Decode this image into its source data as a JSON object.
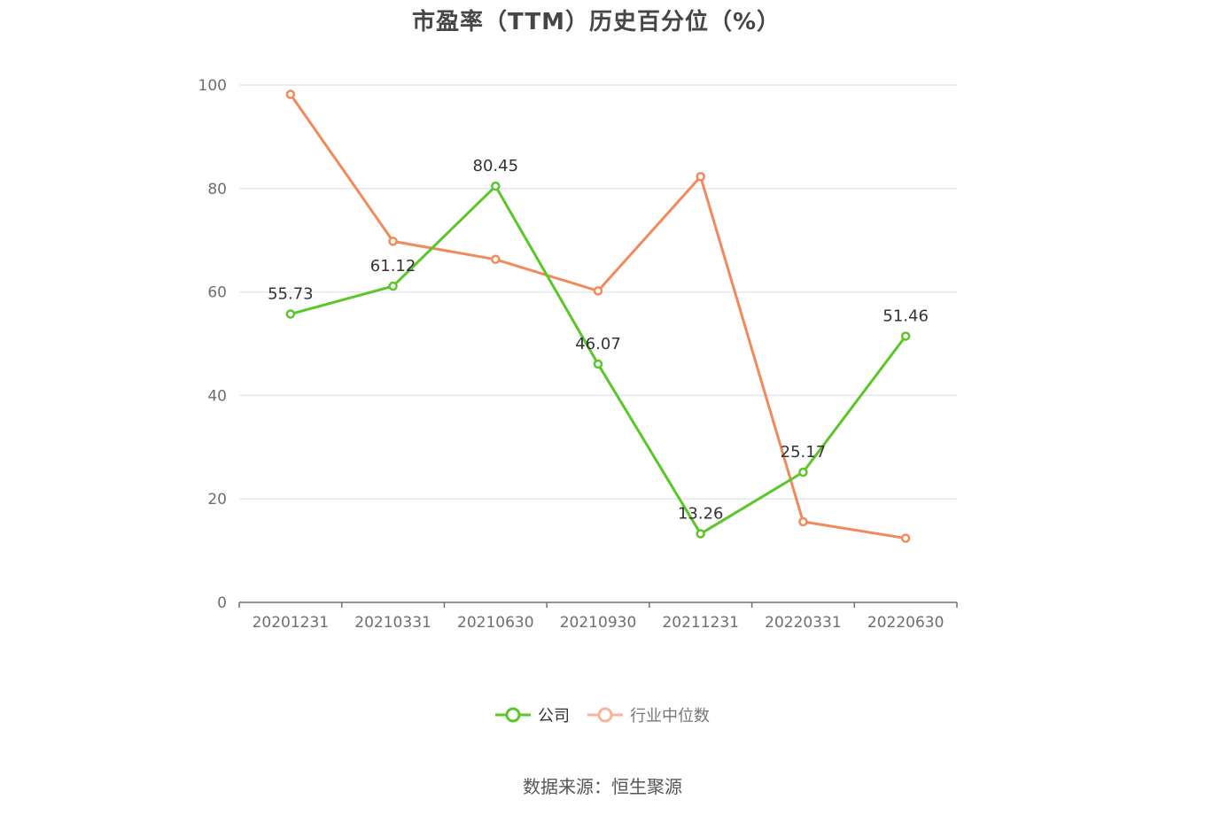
{
  "title": "市盈率（TTM）历史百分位（%）",
  "source": "数据来源：恒生聚源",
  "colors": {
    "company": "#5ac629",
    "industry": "#f2895a",
    "industry_legend": "#f6b49a",
    "grid": "#e4e6ef",
    "axis": "#6e6e6e",
    "tick_text": "#6e6e6e"
  },
  "chart_data": {
    "type": "line",
    "title": "市盈率（TTM）历史百分位（%）",
    "categories": [
      "20201231",
      "20210331",
      "20210630",
      "20210930",
      "20211231",
      "20220331",
      "20220630"
    ],
    "ylim": [
      0,
      100
    ],
    "yticks": [
      0,
      20,
      40,
      60,
      80,
      100
    ],
    "grid": true,
    "legend_position": "bottom-center",
    "series": [
      {
        "name": "公司",
        "key": "company",
        "values": [
          55.73,
          61.12,
          80.45,
          46.07,
          13.26,
          25.17,
          51.46
        ],
        "labels": [
          "55.73",
          "61.12",
          "80.45",
          "46.07",
          "13.26",
          "25.17",
          "51.46"
        ],
        "show_labels": true
      },
      {
        "name": "行业中位数",
        "key": "industry",
        "values": [
          98.2,
          69.8,
          66.3,
          60.2,
          82.3,
          15.6,
          12.4
        ],
        "show_labels": false
      }
    ]
  }
}
